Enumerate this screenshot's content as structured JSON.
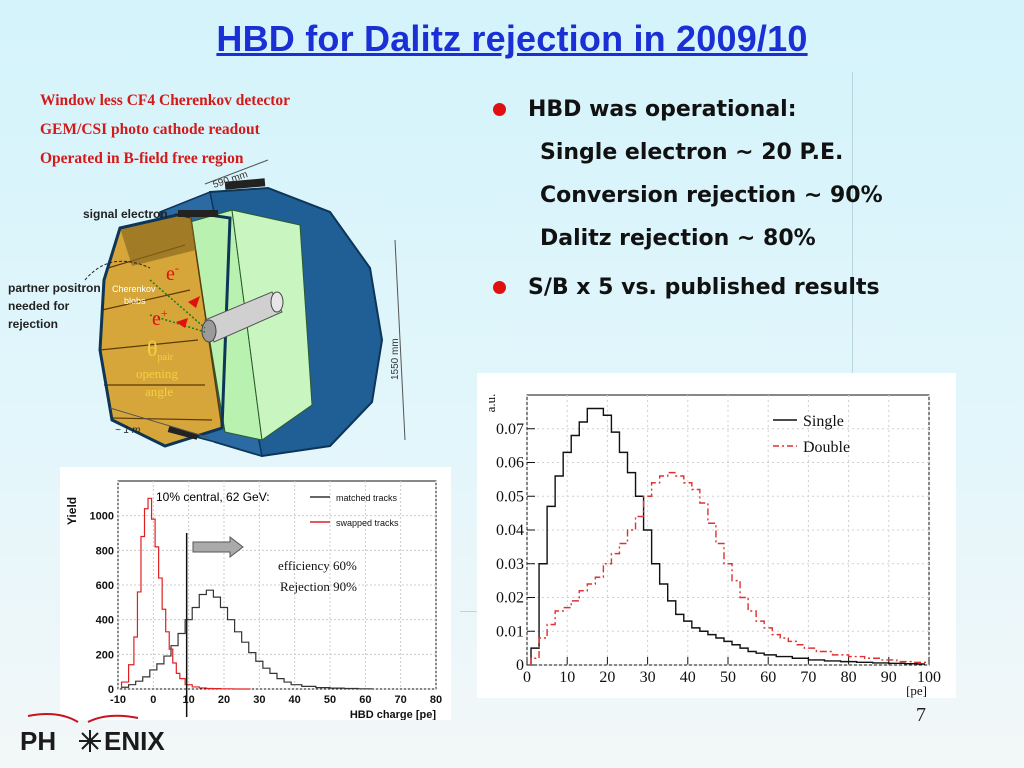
{
  "slide": {
    "title": "HBD for Dalitz rejection in 2009/10",
    "description": [
      "Window less CF4 Cherenkov detector",
      "GEM/CSI photo cathode readout",
      "Operated in B-field free region"
    ],
    "bullets": [
      {
        "text": "HBD was operational:",
        "sub": [
          "Single electron ~ 20 P.E.",
          "Conversion rejection ~ 90%",
          "Dalitz rejection ~ 80%"
        ]
      },
      {
        "text": "S/B  x 5 vs. published results",
        "sub": []
      }
    ],
    "page_number": "7"
  },
  "detector": {
    "labels": {
      "signal_electron": "signal electron",
      "partner_line1": "partner positron",
      "partner_line2": "needed for",
      "partner_line3": "rejection",
      "cherenkov1": "Cherenkov",
      "cherenkov2": "blobs",
      "e_minus": "e",
      "e_plus": "e",
      "minus_sign": "-",
      "plus_sign": "+",
      "theta": "θ",
      "theta_sub": "pair",
      "opening1": "opening",
      "opening2": "angle",
      "size_1m": "~ 1 m",
      "dim_top": "590 mm",
      "dim_side": "1550 mm"
    }
  },
  "logo": {
    "left": "PH",
    "right": "ENIX"
  },
  "chart_data": [
    {
      "type": "line",
      "title": "",
      "xlabel": "HBD charge [pe]",
      "ylabel": "Yield",
      "xlim": [
        -10,
        80
      ],
      "ylim": [
        0,
        1200
      ],
      "xticks": [
        "-10",
        "0",
        "10",
        "20",
        "30",
        "40",
        "50",
        "60",
        "70",
        "80"
      ],
      "yticks": [
        "0",
        "200",
        "400",
        "600",
        "800",
        "1000"
      ],
      "legend_header": "10% central, 62 GeV:",
      "annotations": [
        "efficiency 60%",
        "Rejection 90%"
      ],
      "cut_x": 10,
      "series": [
        {
          "name": "matched tracks",
          "color": "#333333",
          "x": [
            -8,
            -6,
            -4,
            -2,
            0,
            2,
            4,
            6,
            8,
            10,
            12,
            14,
            16,
            18,
            20,
            22,
            24,
            26,
            28,
            30,
            32,
            34,
            36,
            38,
            40,
            44,
            48,
            52,
            56,
            60
          ],
          "y": [
            10,
            25,
            45,
            70,
            110,
            145,
            190,
            250,
            320,
            400,
            470,
            545,
            570,
            530,
            470,
            400,
            330,
            270,
            210,
            160,
            120,
            90,
            60,
            40,
            25,
            15,
            8,
            5,
            3,
            1
          ]
        },
        {
          "name": "swapped tracks",
          "color": "#e02020",
          "x": [
            -8,
            -6,
            -5,
            -4,
            -3,
            -2,
            -1,
            0,
            1,
            2,
            3,
            4,
            5,
            6,
            7,
            8,
            10,
            12,
            14,
            16,
            18,
            20,
            25
          ],
          "y": [
            40,
            140,
            300,
            560,
            880,
            1040,
            1100,
            980,
            820,
            640,
            460,
            330,
            230,
            150,
            90,
            60,
            25,
            12,
            6,
            3,
            2,
            1,
            0
          ]
        }
      ]
    },
    {
      "type": "line",
      "title": "",
      "xlabel": "[pe]",
      "ylabel": "a.u.",
      "xlim": [
        0,
        100
      ],
      "ylim": [
        0,
        0.08
      ],
      "xticks": [
        "0",
        "10",
        "20",
        "30",
        "40",
        "50",
        "60",
        "70",
        "80",
        "90",
        "100"
      ],
      "yticks": [
        "0",
        "0.01",
        "0.02",
        "0.03",
        "0.04",
        "0.05",
        "0.06",
        "0.07"
      ],
      "series": [
        {
          "name": "Single",
          "color": "#111111",
          "x": [
            2,
            4,
            6,
            8,
            10,
            12,
            14,
            16,
            18,
            20,
            22,
            24,
            26,
            28,
            30,
            32,
            34,
            36,
            38,
            40,
            42,
            44,
            46,
            48,
            50,
            52,
            54,
            56,
            58,
            60,
            64,
            68,
            72,
            76,
            80,
            84,
            88,
            92,
            96,
            98
          ],
          "y": [
            0.005,
            0.03,
            0.047,
            0.056,
            0.063,
            0.068,
            0.072,
            0.076,
            0.076,
            0.074,
            0.069,
            0.063,
            0.057,
            0.05,
            0.04,
            0.03,
            0.024,
            0.019,
            0.015,
            0.013,
            0.011,
            0.01,
            0.009,
            0.008,
            0.007,
            0.006,
            0.005,
            0.004,
            0.0035,
            0.003,
            0.0025,
            0.002,
            0.0015,
            0.0012,
            0.001,
            0.0008,
            0.0006,
            0.0005,
            0.0004,
            0.0003
          ]
        },
        {
          "name": "Double",
          "color": "#e03030",
          "x": [
            2,
            4,
            6,
            8,
            10,
            12,
            14,
            16,
            18,
            20,
            22,
            24,
            26,
            28,
            30,
            32,
            34,
            36,
            38,
            40,
            42,
            44,
            46,
            48,
            50,
            52,
            54,
            56,
            58,
            60,
            62,
            64,
            66,
            68,
            70,
            74,
            78,
            82,
            86,
            90,
            94,
            98
          ],
          "y": [
            0.002,
            0.008,
            0.012,
            0.016,
            0.017,
            0.019,
            0.022,
            0.024,
            0.026,
            0.03,
            0.033,
            0.036,
            0.04,
            0.044,
            0.05,
            0.054,
            0.056,
            0.057,
            0.056,
            0.054,
            0.052,
            0.048,
            0.042,
            0.036,
            0.03,
            0.025,
            0.02,
            0.016,
            0.013,
            0.011,
            0.009,
            0.008,
            0.007,
            0.006,
            0.005,
            0.004,
            0.003,
            0.0025,
            0.002,
            0.0015,
            0.001,
            0.0008
          ]
        }
      ]
    }
  ]
}
